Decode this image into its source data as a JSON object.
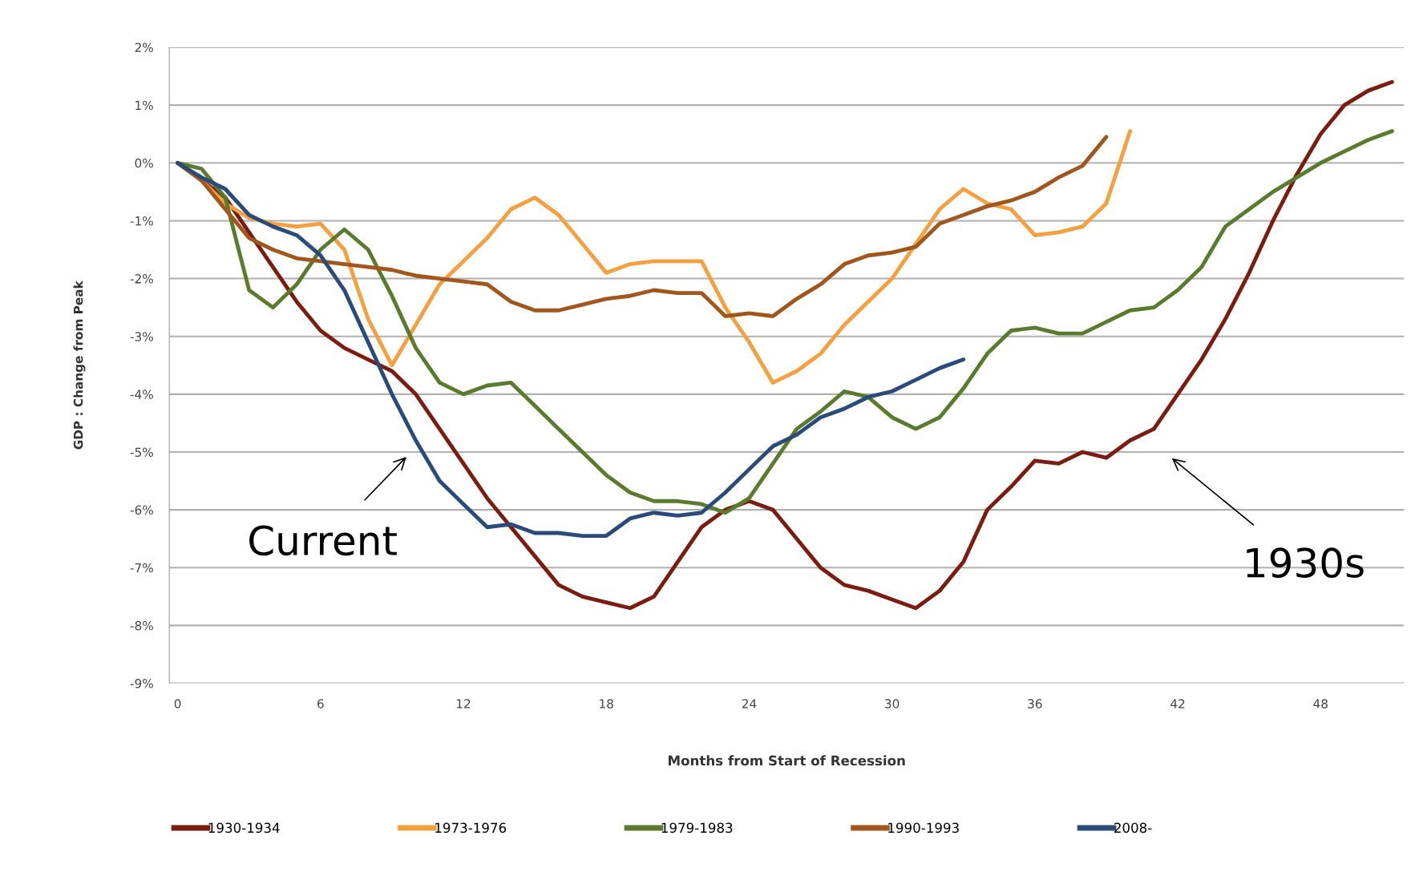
{
  "chart_data": {
    "type": "line",
    "xlabel": "Months from Start of Recession",
    "ylabel": "GDP : Change from Peak",
    "xlim": [
      -0.35,
      51.5
    ],
    "xticks": [
      0,
      6,
      12,
      18,
      24,
      30,
      36,
      42,
      48
    ],
    "ylim": [
      -9,
      2
    ],
    "yticks": [
      {
        "value": 2,
        "label": "2%"
      },
      {
        "value": 1,
        "label": "1%"
      },
      {
        "value": 0,
        "label": "0%"
      },
      {
        "value": -1,
        "label": "-1%"
      },
      {
        "value": -2,
        "label": "-2%"
      },
      {
        "value": -3,
        "label": "-3%"
      },
      {
        "value": -4,
        "label": "-4%"
      },
      {
        "value": -5,
        "label": "-5%"
      },
      {
        "value": -6,
        "label": "-6%"
      },
      {
        "value": -7,
        "label": "-7%"
      },
      {
        "value": -8,
        "label": "-8%"
      },
      {
        "value": -9,
        "label": "-9%"
      }
    ],
    "grid": "y",
    "legend": "bottom",
    "marker": "none",
    "line_style": "solid",
    "series": [
      {
        "name": "1930-1934",
        "color": "#7a1c10",
        "x": [
          0,
          1,
          2,
          3,
          4,
          5,
          6,
          7,
          8,
          9,
          10,
          11,
          12,
          13,
          14,
          15,
          16,
          17,
          18,
          19,
          20,
          21,
          22,
          23,
          24,
          25,
          26,
          27,
          28,
          29,
          30,
          31,
          32,
          33,
          34,
          35,
          36,
          37,
          38,
          39,
          40,
          41,
          42,
          43,
          44,
          45,
          46,
          47,
          48,
          49,
          50,
          51
        ],
        "values": [
          0,
          -0.3,
          -0.6,
          -1.2,
          -1.8,
          -2.4,
          -2.9,
          -3.2,
          -3.4,
          -3.6,
          -4.0,
          -4.6,
          -5.2,
          -5.8,
          -6.3,
          -6.8,
          -7.3,
          -7.5,
          -7.6,
          -7.7,
          -7.5,
          -6.9,
          -6.3,
          -6.0,
          -5.85,
          -6.0,
          -6.5,
          -7.0,
          -7.3,
          -7.4,
          -7.55,
          -7.7,
          -7.4,
          -6.9,
          -6.0,
          -5.6,
          -5.15,
          -5.2,
          -5.0,
          -5.1,
          -4.8,
          -4.6,
          -4.0,
          -3.4,
          -2.7,
          -1.9,
          -1.0,
          -0.2,
          0.5,
          1.0,
          1.25,
          1.4
        ]
      },
      {
        "name": "1973-1976",
        "color": "#f4a040",
        "x": [
          0,
          1,
          2,
          3,
          4,
          5,
          6,
          7,
          8,
          9,
          10,
          11,
          12,
          13,
          14,
          15,
          16,
          17,
          18,
          19,
          20,
          21,
          22,
          23,
          24,
          25,
          26,
          27,
          28,
          29,
          30,
          31,
          32,
          33,
          34,
          35,
          36,
          37,
          38,
          39,
          40
        ],
        "values": [
          0,
          -0.3,
          -0.7,
          -0.95,
          -1.05,
          -1.1,
          -1.05,
          -1.5,
          -2.7,
          -3.5,
          -2.8,
          -2.1,
          -1.7,
          -1.3,
          -0.8,
          -0.6,
          -0.9,
          -1.4,
          -1.9,
          -1.75,
          -1.7,
          -1.7,
          -1.7,
          -2.5,
          -3.1,
          -3.8,
          -3.6,
          -3.3,
          -2.8,
          -2.4,
          -2.0,
          -1.4,
          -0.8,
          -0.45,
          -0.7,
          -0.8,
          -1.25,
          -1.2,
          -1.1,
          -0.7,
          0.55
        ]
      },
      {
        "name": "1979-1983",
        "color": "#5a7a2e",
        "x": [
          0,
          1,
          2,
          3,
          4,
          5,
          6,
          7,
          8,
          9,
          10,
          11,
          12,
          13,
          14,
          15,
          16,
          17,
          18,
          19,
          20,
          21,
          22,
          23,
          24,
          25,
          26,
          27,
          28,
          29,
          30,
          31,
          32,
          33,
          34,
          35,
          36,
          37,
          38,
          39,
          40,
          41,
          42,
          43,
          44,
          45,
          46,
          47,
          48,
          49,
          50,
          51
        ],
        "values": [
          0,
          -0.1,
          -0.6,
          -2.2,
          -2.5,
          -2.1,
          -1.5,
          -1.15,
          -1.5,
          -2.3,
          -3.2,
          -3.8,
          -4.0,
          -3.85,
          -3.8,
          -4.2,
          -4.6,
          -5.0,
          -5.4,
          -5.7,
          -5.85,
          -5.85,
          -5.9,
          -6.05,
          -5.8,
          -5.2,
          -4.6,
          -4.3,
          -3.95,
          -4.05,
          -4.4,
          -4.6,
          -4.4,
          -3.9,
          -3.3,
          -2.9,
          -2.85,
          -2.95,
          -2.95,
          -2.75,
          -2.55,
          -2.5,
          -2.2,
          -1.8,
          -1.1,
          -0.8,
          -0.5,
          -0.25,
          0,
          0.2,
          0.4,
          0.55
        ]
      },
      {
        "name": "1990-1993",
        "color": "#a0561c",
        "x": [
          0,
          1,
          2,
          3,
          4,
          5,
          6,
          7,
          8,
          9,
          10,
          11,
          12,
          13,
          14,
          15,
          16,
          17,
          18,
          19,
          20,
          21,
          22,
          23,
          24,
          25,
          26,
          27,
          28,
          29,
          30,
          31,
          32,
          33,
          34,
          35,
          36,
          37,
          38,
          39
        ],
        "values": [
          0,
          -0.3,
          -0.8,
          -1.3,
          -1.5,
          -1.65,
          -1.7,
          -1.75,
          -1.8,
          -1.85,
          -1.95,
          -2.0,
          -2.05,
          -2.1,
          -2.4,
          -2.55,
          -2.55,
          -2.45,
          -2.35,
          -2.3,
          -2.2,
          -2.25,
          -2.25,
          -2.65,
          -2.6,
          -2.65,
          -2.35,
          -2.1,
          -1.75,
          -1.6,
          -1.55,
          -1.45,
          -1.05,
          -0.9,
          -0.75,
          -0.65,
          -0.5,
          -0.25,
          -0.05,
          0.45
        ]
      },
      {
        "name": "2008-",
        "color": "#2a4a7a",
        "x": [
          0,
          1,
          2,
          3,
          4,
          5,
          6,
          7,
          8,
          9,
          10,
          11,
          12,
          13,
          14,
          15,
          16,
          17,
          18,
          19,
          20,
          21,
          22,
          23,
          24,
          25,
          26,
          27,
          28,
          29,
          30,
          31,
          32,
          33
        ],
        "values": [
          0,
          -0.25,
          -0.45,
          -0.9,
          -1.1,
          -1.25,
          -1.6,
          -2.2,
          -3.1,
          -4.0,
          -4.8,
          -5.5,
          -5.9,
          -6.3,
          -6.25,
          -6.4,
          -6.4,
          -6.45,
          -6.45,
          -6.15,
          -6.05,
          -6.1,
          -6.05,
          -5.7,
          -5.3,
          -4.9,
          -4.7,
          -4.4,
          -4.25,
          -4.05,
          -3.95,
          -3.75,
          -3.55,
          -3.4
        ]
      }
    ],
    "annotations": [
      "Current",
      "1930s"
    ]
  }
}
